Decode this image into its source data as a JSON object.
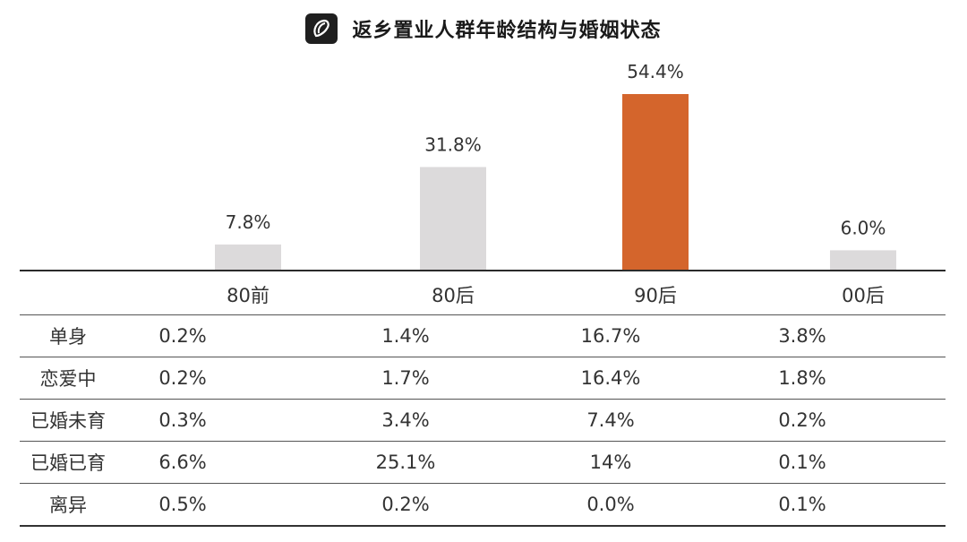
{
  "header": {
    "title": "返乡置业人群年龄结构与婚姻状态",
    "logo_icon": "brand-logo-icon"
  },
  "chart_data": {
    "type": "bar",
    "title": "返乡置业人群年龄结构与婚姻状态",
    "categories": [
      "80前",
      "80后",
      "90后",
      "00后"
    ],
    "values": [
      7.8,
      31.8,
      54.4,
      6.0
    ],
    "value_labels": [
      "7.8%",
      "31.8%",
      "54.4%",
      "6.0%"
    ],
    "ylim": [
      0,
      54.4
    ],
    "highlight_index": 2,
    "colors": {
      "default": "#dcdadb",
      "highlight": "#d4652c"
    },
    "table": {
      "rows": [
        {
          "label": "单身",
          "values": [
            "0.2%",
            "1.4%",
            "16.7%",
            "3.8%"
          ]
        },
        {
          "label": "恋爱中",
          "values": [
            "0.2%",
            "1.7%",
            "16.4%",
            "1.8%"
          ]
        },
        {
          "label": "已婚未育",
          "values": [
            "0.3%",
            "3.4%",
            "7.4%",
            "0.2%"
          ]
        },
        {
          "label": "已婚已育",
          "values": [
            "6.6%",
            "25.1%",
            "14%",
            "0.1%"
          ]
        },
        {
          "label": "离异",
          "values": [
            "0.5%",
            "0.2%",
            "0.0%",
            "0.1%"
          ]
        }
      ]
    }
  }
}
